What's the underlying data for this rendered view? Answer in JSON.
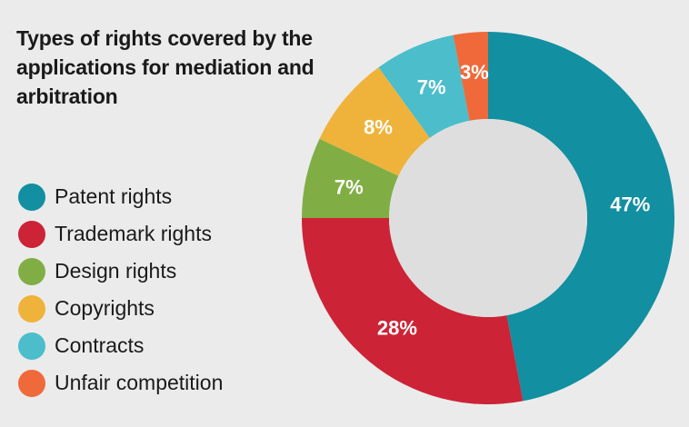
{
  "chart_data": {
    "type": "pie",
    "title": "Types of rights covered by the applications for mediation and arbitration",
    "donut": true,
    "legend_position": "left",
    "slices": [
      {
        "label": "Patent rights",
        "value": 47,
        "display": "47%",
        "color": "#128fa1"
      },
      {
        "label": "Trademark rights",
        "value": 28,
        "display": "28%",
        "color": "#cc2336"
      },
      {
        "label": "Design rights",
        "value": 7,
        "display": "7%",
        "color": "#80ae44"
      },
      {
        "label": "Copyrights",
        "value": 8,
        "display": "8%",
        "color": "#efb33b"
      },
      {
        "label": "Contracts",
        "value": 7,
        "display": "7%",
        "color": "#4bbdcb"
      },
      {
        "label": "Unfair competition",
        "value": 3,
        "display": "3%",
        "color": "#f0693a"
      }
    ]
  },
  "colors": {
    "background": "#ebebeb",
    "donut_hole": "#dedede"
  }
}
